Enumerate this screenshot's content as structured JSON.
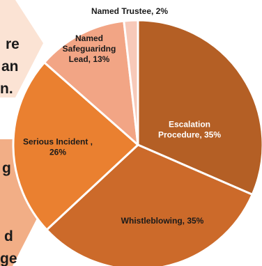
{
  "background": {
    "fragments": [
      "re",
      "an",
      "n.",
      "g",
      "d",
      "ge"
    ]
  },
  "chart_data": {
    "type": "pie",
    "title": "",
    "slices": [
      {
        "label": "Escalation Procedure",
        "display": [
          "Escalation",
          "Procedure, 35%"
        ],
        "value": 35,
        "color": "#b45f25",
        "text_color": "#ffffff"
      },
      {
        "label": "Whistleblowing",
        "display": [
          "Whistleblowing, 35%"
        ],
        "value": 35,
        "color": "#cc6a2a",
        "text_color": "#1a1a1a"
      },
      {
        "label": "Serious Incident",
        "display": [
          "Serious Incident ,",
          "26%"
        ],
        "value": 26,
        "color": "#ea8030",
        "text_color": "#1a1a1a"
      },
      {
        "label": "Named Safeguaridng Lead",
        "display": [
          "Named",
          "Safeguaridng",
          "Lead, 13%"
        ],
        "value": 13,
        "color": "#f2a585",
        "text_color": "#1a1a1a"
      },
      {
        "label": "Named Trustee",
        "display": [
          "Named Trustee, 2%"
        ],
        "value": 2,
        "color": "#f7c9b9",
        "text_color": "#1a1a1a"
      }
    ]
  }
}
